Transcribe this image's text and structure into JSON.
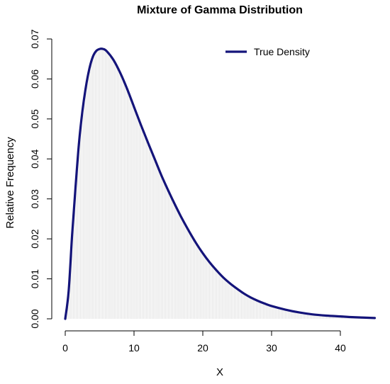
{
  "chart_data": {
    "type": "line",
    "title": "Mixture of Gamma Distribution",
    "xlabel": "X",
    "ylabel": "Relative Frequency",
    "xlim": [
      0,
      45
    ],
    "ylim": [
      0,
      0.07
    ],
    "x_ticks": [
      "0",
      "10",
      "20",
      "30",
      "40"
    ],
    "y_ticks": [
      "0.00",
      "0.01",
      "0.02",
      "0.03",
      "0.04",
      "0.05",
      "0.06",
      "0.07"
    ],
    "legend": {
      "position": "top-right",
      "entries": [
        "True Density"
      ]
    },
    "grid": false,
    "colors": {
      "line": "#14147a",
      "fill_lines": "#d3d3d3"
    },
    "series": [
      {
        "name": "True Density",
        "x": [
          0,
          0.5,
          1,
          1.5,
          2,
          2.5,
          3,
          3.5,
          4,
          4.5,
          5,
          5.5,
          6,
          7,
          8,
          9,
          10,
          11,
          12,
          13,
          14,
          15,
          16,
          17,
          18,
          19,
          20,
          21,
          22,
          23,
          24,
          25,
          26,
          27,
          28,
          29,
          30,
          32,
          34,
          36,
          38,
          40,
          42,
          45
        ],
        "y": [
          0,
          0.007,
          0.021,
          0.033,
          0.044,
          0.052,
          0.058,
          0.0625,
          0.0655,
          0.067,
          0.0675,
          0.0675,
          0.067,
          0.0648,
          0.0615,
          0.0575,
          0.053,
          0.0485,
          0.0442,
          0.04,
          0.0358,
          0.032,
          0.0284,
          0.025,
          0.0219,
          0.019,
          0.0164,
          0.0141,
          0.0121,
          0.0103,
          0.0088,
          0.0075,
          0.0063,
          0.0053,
          0.0045,
          0.0038,
          0.0032,
          0.0023,
          0.0016,
          0.0011,
          0.0008,
          0.0006,
          0.0004,
          0.0002
        ]
      }
    ]
  }
}
